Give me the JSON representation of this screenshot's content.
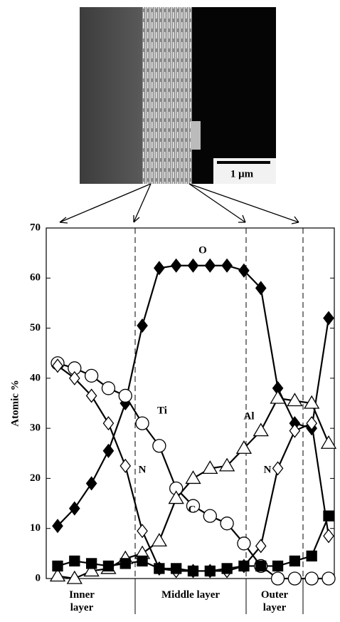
{
  "image": {
    "scale_bar_label": "1 μm"
  },
  "chart_data": {
    "type": "line",
    "ylabel": "Atomic %",
    "categories": [
      null,
      null,
      null,
      null,
      null,
      null,
      null,
      null,
      null,
      null,
      null,
      null,
      null,
      null,
      null,
      null,
      null
    ],
    "ylim": [
      0,
      70
    ],
    "yticks": [
      0,
      10,
      20,
      30,
      40,
      50,
      60,
      70
    ],
    "series": [
      {
        "name": "O",
        "color": "#000000",
        "marker": "diamond",
        "filled": true,
        "values": [
          10.5,
          14,
          19,
          25.5,
          35,
          50.5,
          62,
          62.5,
          62.5,
          62.5,
          62.5,
          61.5,
          58,
          38,
          31,
          30,
          52
        ]
      },
      {
        "name": "Ti",
        "color": "#000000",
        "marker": "circle",
        "filled": false,
        "values": [
          43,
          42,
          40.5,
          38,
          36.5,
          31,
          26.5,
          18,
          14.5,
          12.5,
          11,
          7,
          2.5,
          0,
          0,
          0,
          0
        ]
      },
      {
        "name": "N",
        "color": "#000000",
        "marker": "diamond",
        "filled": false,
        "values": [
          42.5,
          40,
          36.5,
          31,
          22.5,
          9.5,
          2,
          1.5,
          1.5,
          1.5,
          1.5,
          2.5,
          6.5,
          22,
          29.5,
          31,
          8.5
        ]
      },
      {
        "name": "Al",
        "color": "#000000",
        "marker": "triangle",
        "filled": false,
        "values": [
          0.5,
          0,
          1.5,
          2,
          4,
          5,
          7.5,
          16,
          20,
          22,
          22.5,
          26,
          29.5,
          36,
          35.5,
          35,
          27
        ]
      },
      {
        "name": "C",
        "color": "#000000",
        "marker": "square",
        "filled": true,
        "values": [
          2.5,
          3.5,
          3,
          2.5,
          3,
          3.5,
          2,
          2,
          1.5,
          1.5,
          2,
          2.5,
          2.5,
          2.5,
          3.5,
          4.5,
          12.5
        ]
      }
    ],
    "layers": [
      "Inner layer",
      "Middle layer",
      "Outer layer"
    ]
  }
}
